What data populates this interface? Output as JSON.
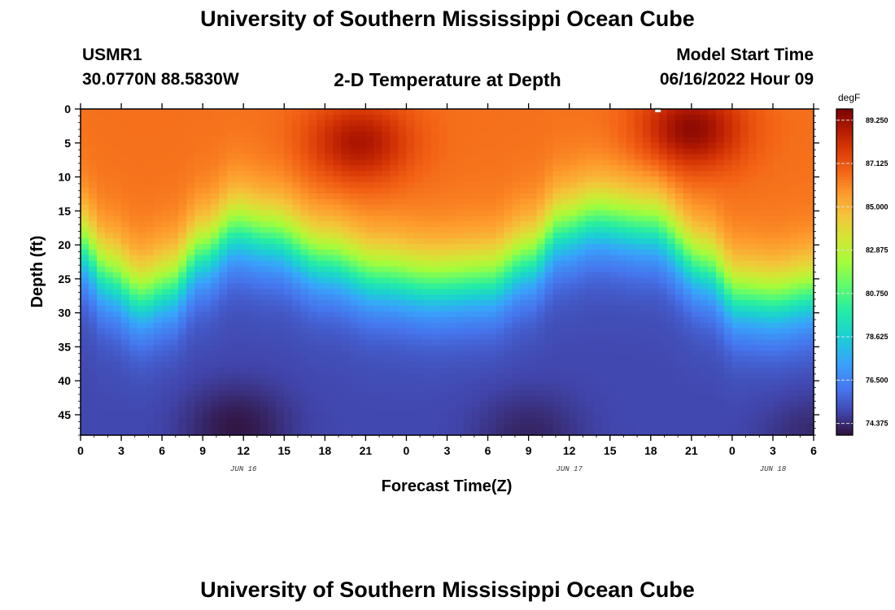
{
  "page": {
    "title_top": "University of Southern Mississippi Ocean Cube",
    "title_bottom": "University of Southern Mississippi Ocean Cube",
    "station_id": "USMR1",
    "station_coords": "30.0770N  88.5830W",
    "plot_title": "2-D Temperature at Depth",
    "model_label": "Model Start Time",
    "model_time": "06/16/2022 Hour 09"
  },
  "chart_data": {
    "type": "heatmap",
    "title": "2-D Temperature at Depth",
    "xlabel": "Forecast Time(Z)",
    "ylabel": "Depth (ft)",
    "x_range": [
      0,
      54
    ],
    "y_range": [
      0,
      48
    ],
    "x_ticks": [
      0,
      3,
      6,
      9,
      12,
      15,
      18,
      21,
      24,
      27,
      30,
      33,
      36,
      39,
      42,
      45,
      48,
      51,
      54
    ],
    "x_tick_labels": [
      "0",
      "3",
      "6",
      "9",
      "12",
      "15",
      "18",
      "21",
      "0",
      "3",
      "6",
      "9",
      "12",
      "15",
      "18",
      "21",
      "0",
      "3",
      "6"
    ],
    "y_ticks": [
      0,
      5,
      10,
      15,
      20,
      25,
      30,
      35,
      40,
      45
    ],
    "y_tick_labels": [
      "0",
      "5",
      "10",
      "15",
      "20",
      "25",
      "30",
      "35",
      "40",
      "45"
    ],
    "date_labels": [
      {
        "x": 12,
        "text": "JUN 16"
      },
      {
        "x": 36,
        "text": "JUN 17"
      },
      {
        "x": 51,
        "text": "JUN 18"
      }
    ],
    "colorbar": {
      "unit": "degF",
      "min": 73.8,
      "max": 89.8,
      "ticks": [
        89.25,
        87.125,
        85.0,
        82.875,
        80.75,
        78.625,
        76.5,
        74.375
      ],
      "tick_labels": [
        "89.250",
        "87.125",
        "85.000",
        "82.875",
        "80.750",
        "78.625",
        "76.500",
        "74.375"
      ]
    },
    "interface_depth_profile": {
      "x": [
        0,
        2,
        4.5,
        6.5,
        9,
        11.5,
        14,
        18,
        22,
        26,
        30,
        33,
        35.5,
        38,
        42,
        46,
        48.5,
        51,
        54
      ],
      "depth_ft": [
        20,
        24.5,
        27.5,
        26,
        21,
        17.5,
        18.5,
        22,
        24.5,
        25.5,
        25,
        22,
        17.5,
        16,
        17,
        23,
        27.5,
        28,
        27
      ]
    },
    "surface_warm_cores": [
      {
        "x": 20.5,
        "depth_ft": 5,
        "temp_f": 89.0
      },
      {
        "x": 45,
        "depth_ft": 3,
        "temp_f": 89.5
      }
    ],
    "deep_cold_cores": [
      {
        "x": 11.5,
        "depth_ft": 47,
        "temp_f": 73.9
      },
      {
        "x": 33,
        "depth_ft": 48,
        "temp_f": 74.2
      },
      {
        "x": 54,
        "depth_ft": 48,
        "temp_f": 74.3
      }
    ],
    "surface_temp_f": 86.5,
    "bottom_temp_f": 75.0,
    "marker": {
      "x": 42.5,
      "depth_ft": 0
    }
  }
}
